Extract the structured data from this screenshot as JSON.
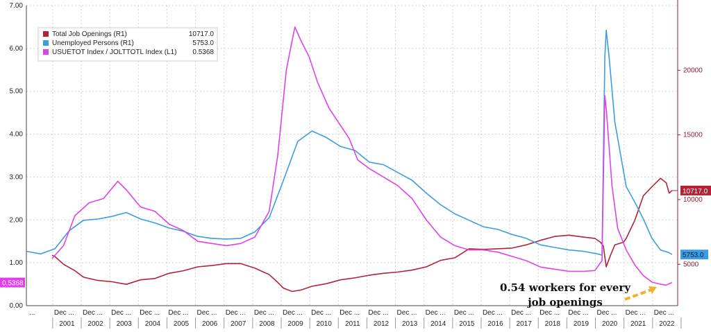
{
  "chart_data": {
    "type": "line",
    "left_axis": {
      "ylim": [
        0,
        7
      ],
      "ticks": [
        "0.00",
        "1.00",
        "2.00",
        "3.00",
        "4.00",
        "5.00",
        "6.00",
        "7.00"
      ],
      "tick_values": [
        0,
        1,
        2,
        3,
        4,
        5,
        6,
        7
      ]
    },
    "right_axis": {
      "ylim": [
        1800,
        25000
      ],
      "ticks": [
        "5000",
        "10000",
        "15000",
        "20000"
      ],
      "tick_values": [
        5000,
        10000,
        15000,
        20000
      ]
    },
    "xlim": [
      2000.0,
      2022.8
    ],
    "years": [
      "2001",
      "2002",
      "2003",
      "2004",
      "2005",
      "2006",
      "2007",
      "2008",
      "2009",
      "2010",
      "2011",
      "2012",
      "2013",
      "2014",
      "2015",
      "2016",
      "2017",
      "2018",
      "2019",
      "2020",
      "2021",
      "2022"
    ],
    "x_tick_label": "Dec ...",
    "x_first_label": "...",
    "legend": {
      "entries": [
        {
          "name": "Total Job Openings (R1)",
          "value": "10717.0",
          "color": "#b22234"
        },
        {
          "name": "Unemployed Persons (R1)",
          "value": "5753.0",
          "color": "#3d9be0"
        },
        {
          "name": "USUETOT Index / JOLTTOTL Index (L1)",
          "value": "0.5368",
          "color": "#e040e8"
        }
      ]
    },
    "last_labels": {
      "job_openings": "10717.0",
      "unemployed": "5753.0",
      "ratio": "0.5368"
    },
    "series": [
      {
        "name": "Total Job Openings (R1)",
        "axis": "right",
        "color": "#b22234",
        "points": [
          [
            2000.9,
            5700
          ],
          [
            2001.0,
            5600
          ],
          [
            2001.3,
            5000
          ],
          [
            2001.7,
            4500
          ],
          [
            2002.0,
            4000
          ],
          [
            2002.5,
            3750
          ],
          [
            2003.0,
            3650
          ],
          [
            2003.5,
            3450
          ],
          [
            2004.0,
            3800
          ],
          [
            2004.5,
            3900
          ],
          [
            2005.0,
            4300
          ],
          [
            2005.5,
            4500
          ],
          [
            2006.0,
            4800
          ],
          [
            2006.5,
            4900
          ],
          [
            2007.0,
            5050
          ],
          [
            2007.5,
            5050
          ],
          [
            2008.0,
            4700
          ],
          [
            2008.5,
            4200
          ],
          [
            2008.8,
            3600
          ],
          [
            2009.0,
            3150
          ],
          [
            2009.3,
            2900
          ],
          [
            2009.6,
            3000
          ],
          [
            2010.0,
            3300
          ],
          [
            2010.5,
            3500
          ],
          [
            2011.0,
            3800
          ],
          [
            2011.5,
            3950
          ],
          [
            2012.0,
            4150
          ],
          [
            2012.5,
            4300
          ],
          [
            2013.0,
            4400
          ],
          [
            2013.5,
            4550
          ],
          [
            2014.0,
            4800
          ],
          [
            2014.5,
            5300
          ],
          [
            2015.0,
            5500
          ],
          [
            2015.5,
            6200
          ],
          [
            2016.0,
            6150
          ],
          [
            2016.5,
            6200
          ],
          [
            2017.0,
            6250
          ],
          [
            2017.5,
            6500
          ],
          [
            2018.0,
            6850
          ],
          [
            2018.5,
            7150
          ],
          [
            2019.0,
            7250
          ],
          [
            2019.5,
            7100
          ],
          [
            2019.9,
            7000
          ],
          [
            2020.1,
            6700
          ],
          [
            2020.2,
            6400
          ],
          [
            2020.3,
            4800
          ],
          [
            2020.45,
            5700
          ],
          [
            2020.6,
            6500
          ],
          [
            2020.9,
            6700
          ],
          [
            2021.0,
            7000
          ],
          [
            2021.3,
            8400
          ],
          [
            2021.6,
            10300
          ],
          [
            2021.9,
            11000
          ],
          [
            2022.2,
            11650
          ],
          [
            2022.4,
            11300
          ],
          [
            2022.5,
            10500
          ],
          [
            2022.6,
            10700
          ]
        ]
      },
      {
        "name": "Unemployed Persons (R1)",
        "axis": "right",
        "color": "#3d9be0",
        "points": [
          [
            2000.0,
            6000
          ],
          [
            2000.5,
            5800
          ],
          [
            2001.0,
            6200
          ],
          [
            2001.5,
            7600
          ],
          [
            2002.0,
            8400
          ],
          [
            2002.5,
            8500
          ],
          [
            2003.0,
            8700
          ],
          [
            2003.5,
            9000
          ],
          [
            2004.0,
            8500
          ],
          [
            2004.5,
            8200
          ],
          [
            2005.0,
            7800
          ],
          [
            2005.5,
            7550
          ],
          [
            2006.0,
            7150
          ],
          [
            2006.5,
            7000
          ],
          [
            2007.0,
            6950
          ],
          [
            2007.5,
            7000
          ],
          [
            2008.0,
            7500
          ],
          [
            2008.5,
            8600
          ],
          [
            2009.0,
            11500
          ],
          [
            2009.5,
            14500
          ],
          [
            2010.0,
            15300
          ],
          [
            2010.5,
            14800
          ],
          [
            2011.0,
            14100
          ],
          [
            2011.5,
            13800
          ],
          [
            2012.0,
            12900
          ],
          [
            2012.5,
            12700
          ],
          [
            2013.0,
            12100
          ],
          [
            2013.5,
            11500
          ],
          [
            2014.0,
            10500
          ],
          [
            2014.5,
            9600
          ],
          [
            2015.0,
            8900
          ],
          [
            2015.5,
            8400
          ],
          [
            2016.0,
            7900
          ],
          [
            2016.5,
            7700
          ],
          [
            2017.0,
            7300
          ],
          [
            2017.5,
            7000
          ],
          [
            2018.0,
            6500
          ],
          [
            2018.5,
            6300
          ],
          [
            2019.0,
            6100
          ],
          [
            2019.5,
            6000
          ],
          [
            2020.0,
            5800
          ],
          [
            2020.15,
            5700
          ],
          [
            2020.25,
            21000
          ],
          [
            2020.3,
            23100
          ],
          [
            2020.4,
            21000
          ],
          [
            2020.6,
            16000
          ],
          [
            2020.8,
            13500
          ],
          [
            2021.0,
            11000
          ],
          [
            2021.3,
            9800
          ],
          [
            2021.6,
            8500
          ],
          [
            2021.9,
            7000
          ],
          [
            2022.2,
            6100
          ],
          [
            2022.5,
            5900
          ],
          [
            2022.6,
            5753
          ]
        ]
      },
      {
        "name": "USUETOT Index / JOLTTOTL Index (L1)",
        "axis": "left",
        "color": "#e040e8",
        "points": [
          [
            2000.9,
            1.1
          ],
          [
            2001.3,
            1.4
          ],
          [
            2001.7,
            2.1
          ],
          [
            2002.2,
            2.4
          ],
          [
            2002.7,
            2.5
          ],
          [
            2003.2,
            2.9
          ],
          [
            2003.5,
            2.7
          ],
          [
            2004.0,
            2.3
          ],
          [
            2004.5,
            2.2
          ],
          [
            2005.0,
            1.9
          ],
          [
            2005.5,
            1.75
          ],
          [
            2006.0,
            1.5
          ],
          [
            2006.5,
            1.45
          ],
          [
            2007.0,
            1.4
          ],
          [
            2007.5,
            1.45
          ],
          [
            2008.0,
            1.6
          ],
          [
            2008.5,
            2.2
          ],
          [
            2008.8,
            3.5
          ],
          [
            2009.1,
            5.5
          ],
          [
            2009.4,
            6.5
          ],
          [
            2009.6,
            6.2
          ],
          [
            2009.9,
            5.8
          ],
          [
            2010.2,
            5.2
          ],
          [
            2010.6,
            4.6
          ],
          [
            2011.0,
            4.2
          ],
          [
            2011.3,
            3.9
          ],
          [
            2011.6,
            3.4
          ],
          [
            2012.0,
            3.2
          ],
          [
            2012.5,
            3.0
          ],
          [
            2013.0,
            2.8
          ],
          [
            2013.5,
            2.5
          ],
          [
            2014.0,
            2.0
          ],
          [
            2014.5,
            1.6
          ],
          [
            2015.0,
            1.4
          ],
          [
            2015.5,
            1.3
          ],
          [
            2016.0,
            1.3
          ],
          [
            2016.5,
            1.25
          ],
          [
            2017.0,
            1.15
          ],
          [
            2017.5,
            1.05
          ],
          [
            2018.0,
            0.9
          ],
          [
            2018.5,
            0.85
          ],
          [
            2019.0,
            0.8
          ],
          [
            2019.5,
            0.8
          ],
          [
            2019.9,
            0.82
          ],
          [
            2020.15,
            1.05
          ],
          [
            2020.25,
            4.9
          ],
          [
            2020.3,
            4.6
          ],
          [
            2020.5,
            2.8
          ],
          [
            2020.7,
            1.8
          ],
          [
            2021.0,
            1.3
          ],
          [
            2021.3,
            0.95
          ],
          [
            2021.6,
            0.7
          ],
          [
            2021.9,
            0.55
          ],
          [
            2022.2,
            0.5
          ],
          [
            2022.4,
            0.48
          ],
          [
            2022.6,
            0.54
          ]
        ]
      }
    ],
    "annotation": {
      "lines": [
        "0.54 workers for every",
        "job openings"
      ],
      "arrow_color": "#f0b030"
    },
    "colors": {
      "axis_right": "#8b1e2a",
      "axis_left_label_bg": "#e040e8",
      "grid": "#d0d0d0"
    }
  }
}
